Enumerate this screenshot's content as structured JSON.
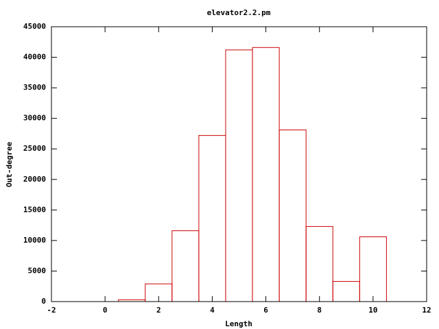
{
  "chart_data": {
    "type": "histogram",
    "title": "elevator2.2.pm",
    "x_label": "Length",
    "y_label": "Out-degree",
    "bins": [
      0.5,
      1.5,
      2.5,
      3.5,
      4.5,
      5.5,
      6.5,
      7.5,
      8.5,
      9.5,
      10.5
    ],
    "values": [
      300,
      2900,
      11600,
      27200,
      41200,
      41600,
      28100,
      12300,
      3300,
      10600
    ],
    "color": "#cc0000",
    "xlim": [
      -2,
      12
    ],
    "xticks": [
      -2,
      0,
      2,
      4,
      6,
      8,
      10,
      12
    ],
    "ylim": [
      0,
      45000
    ],
    "yticks": [
      0,
      5000,
      10000,
      15000,
      20000,
      25000,
      30000,
      35000,
      40000,
      45000
    ],
    "grid": false
  }
}
